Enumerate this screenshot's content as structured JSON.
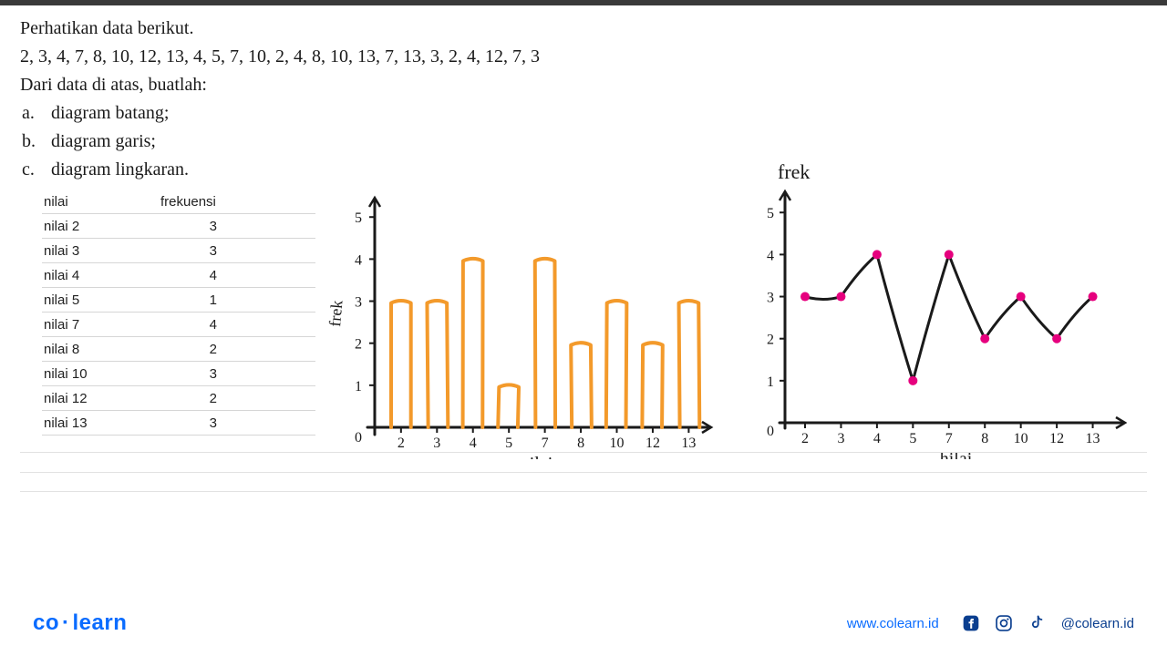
{
  "problem": {
    "line1": "Perhatikan data berikut.",
    "line2": "2, 3, 4, 7, 8, 10, 12, 13, 4, 5, 7, 10, 2, 4, 8, 10, 13, 7, 13, 3, 2, 4, 12, 7, 3",
    "line3": "Dari data di atas, buatlah:",
    "opt_a_letter": "a.",
    "opt_a": "diagram batang;",
    "opt_b_letter": "b.",
    "opt_b": "diagram garis;",
    "opt_c_letter": "c.",
    "opt_c": "diagram lingkaran."
  },
  "table": {
    "header_left": "nilai",
    "header_right": "frekuensi",
    "rows": [
      {
        "label": "nilai 2",
        "freq": 3
      },
      {
        "label": "nilai 3",
        "freq": 3
      },
      {
        "label": "nilai 4",
        "freq": 4
      },
      {
        "label": "nilai 5",
        "freq": 1
      },
      {
        "label": "nilai 7",
        "freq": 4
      },
      {
        "label": "nilai 8",
        "freq": 2
      },
      {
        "label": "nilai 10",
        "freq": 3
      },
      {
        "label": "nilai 12",
        "freq": 2
      },
      {
        "label": "nilai 13",
        "freq": 3
      }
    ]
  },
  "bar_chart": {
    "type": "bar",
    "x_label": "nilai",
    "y_label": "frek",
    "y_ticks": [
      1,
      2,
      3,
      4,
      5
    ],
    "origin_label": "0",
    "categories": [
      "2",
      "3",
      "4",
      "5",
      "7",
      "8",
      "10",
      "12",
      "13"
    ],
    "values": [
      3,
      3,
      4,
      1,
      4,
      2,
      3,
      2,
      3
    ],
    "axis_color": "#1a1a1a",
    "bar_stroke": "#f39a2b",
    "bar_stroke_width": 4,
    "bar_fill": "none",
    "font_family": "Comic Sans MS",
    "label_fontsize": 18,
    "tick_fontsize": 16,
    "ylim": [
      0,
      5.2
    ]
  },
  "line_chart": {
    "type": "line",
    "x_label": "hilai",
    "y_label": "frek",
    "y_ticks": [
      1,
      2,
      3,
      4,
      5
    ],
    "origin_label": "0",
    "categories": [
      "2",
      "3",
      "4",
      "5",
      "7",
      "8",
      "10",
      "12",
      "13"
    ],
    "values": [
      3,
      3,
      4,
      1,
      4,
      2,
      3,
      2,
      3
    ],
    "axis_color": "#1a1a1a",
    "line_color": "#1a1a1a",
    "line_width": 3,
    "point_color": "#e6007e",
    "point_radius": 5,
    "font_family": "Comic Sans MS",
    "label_fontsize": 18,
    "tick_fontsize": 16,
    "ylim": [
      0,
      5.2
    ]
  },
  "footer": {
    "logo_left": "co",
    "logo_dot": "·",
    "logo_right": "learn",
    "url": "www.colearn.id",
    "handle": "@colearn.id"
  },
  "colors": {
    "brand_blue": "#0a6cff",
    "brand_dark": "#0a3e8f",
    "topbar": "#3a3a3a",
    "rule": "#d6d6d6"
  }
}
